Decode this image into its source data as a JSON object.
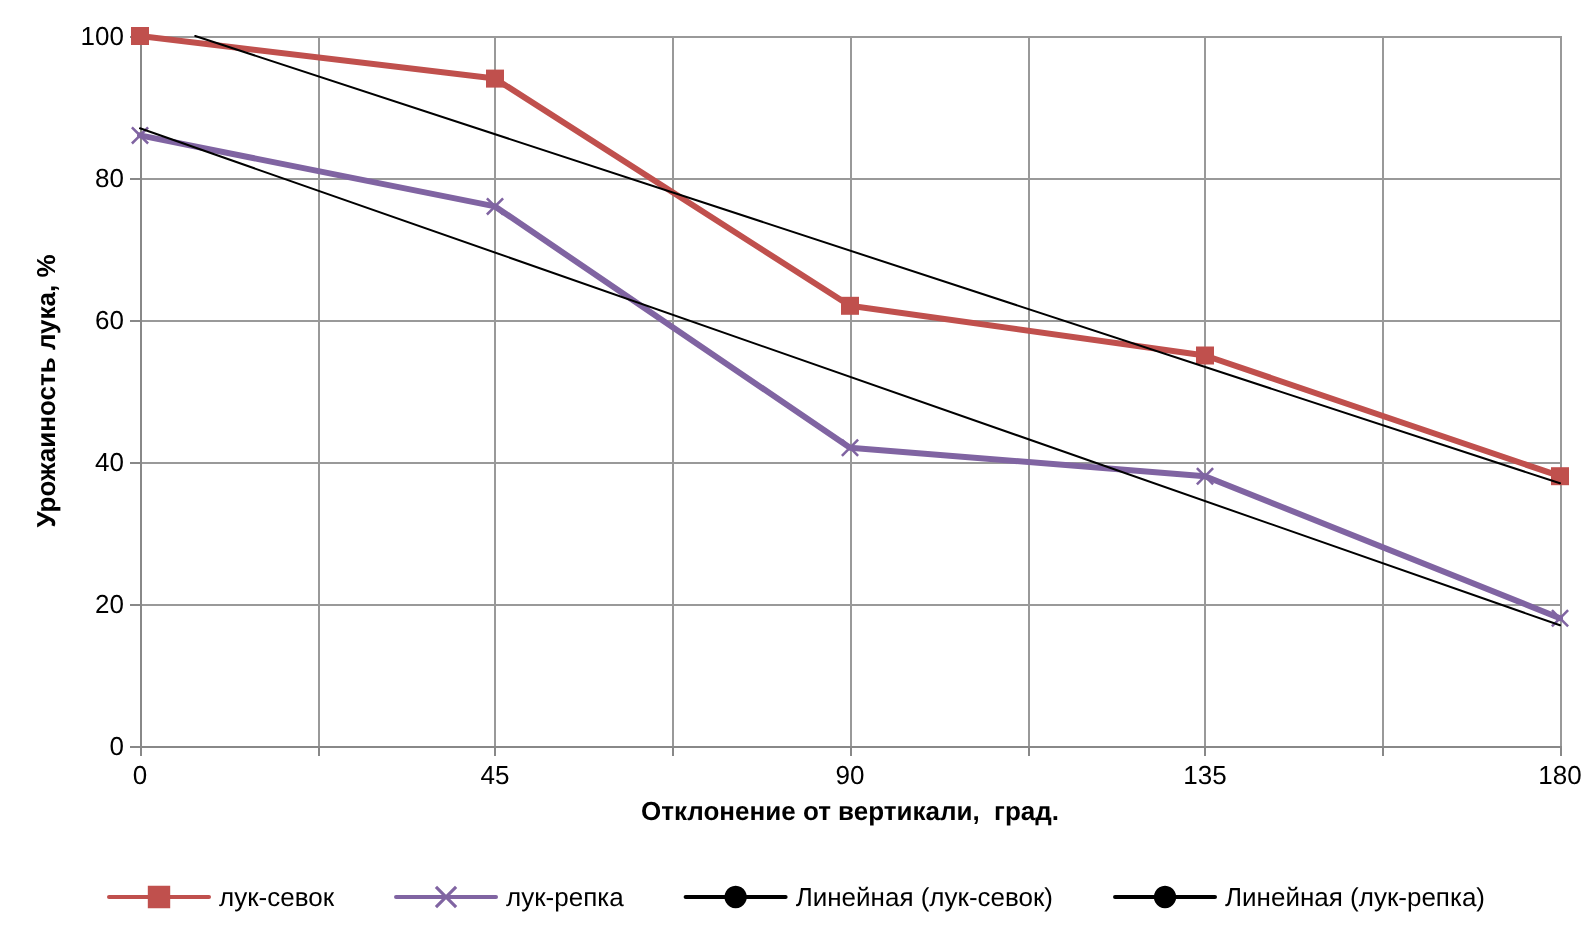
{
  "chart_data": {
    "type": "line",
    "xlabel": "Отклонение от вертикали,  град.",
    "ylabel": "Урожаиность лука, %",
    "x": [
      0,
      45,
      90,
      135,
      180
    ],
    "series": [
      {
        "name": "лук-севок",
        "color": "#c0504d",
        "marker": "square",
        "values": [
          100,
          94,
          62,
          55,
          38
        ]
      },
      {
        "name": "лук-репка",
        "color": "#8064a2",
        "marker": "cross",
        "values": [
          86,
          76,
          42,
          38,
          18
        ]
      },
      {
        "name": "Линейная (лук-севок)",
        "color": "#000000",
        "marker": "none",
        "x": [
          7,
          180
        ],
        "values": [
          100,
          37
        ]
      },
      {
        "name": "Линейная (лук-репка)",
        "color": "#000000",
        "marker": "none",
        "x": [
          0,
          180
        ],
        "values": [
          87,
          17
        ]
      }
    ],
    "xlim": [
      0,
      180
    ],
    "xticks": [
      0,
      {
        "value": 22.5,
        "label": null
      },
      45,
      {
        "value": 67.5,
        "label": null
      },
      90,
      {
        "value": 112.5,
        "label": null
      },
      135,
      {
        "value": 157.5,
        "label": null
      },
      180
    ],
    "ylim": [
      0,
      100
    ],
    "yticks": [
      0,
      20,
      40,
      60,
      80,
      100
    ],
    "grid": true,
    "legend": "bottom",
    "line_style": "solid"
  }
}
